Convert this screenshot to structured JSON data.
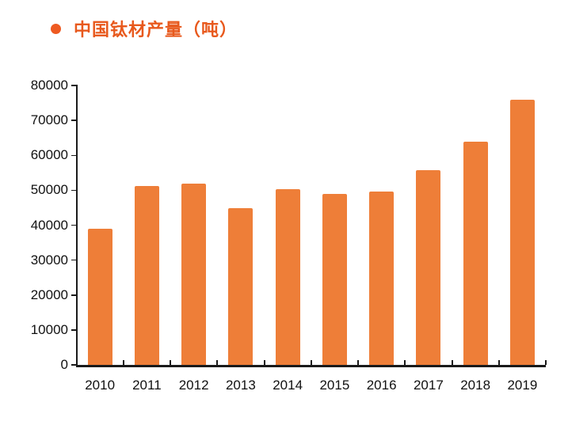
{
  "legend": {
    "marker_color": "#EE5A21",
    "label": "中国钛材产量（吨）",
    "label_color": "#E8591D"
  },
  "chart_data": {
    "type": "bar",
    "title": "中国钛材产量（吨）",
    "xlabel": "",
    "ylabel": "",
    "categories": [
      "2010",
      "2011",
      "2012",
      "2013",
      "2014",
      "2015",
      "2016",
      "2017",
      "2018",
      "2019"
    ],
    "values": [
      39000,
      51300,
      51900,
      44900,
      50400,
      48900,
      49600,
      55800,
      64000,
      76000
    ],
    "ylim": [
      0,
      80000
    ],
    "yticks": [
      0,
      10000,
      20000,
      30000,
      40000,
      50000,
      60000,
      70000,
      80000
    ],
    "grid": "off",
    "legend_position": "top-left",
    "bar_color": "#EE7E38",
    "axis_color": "#1A1A1A",
    "tick_label_color": "#111111"
  }
}
